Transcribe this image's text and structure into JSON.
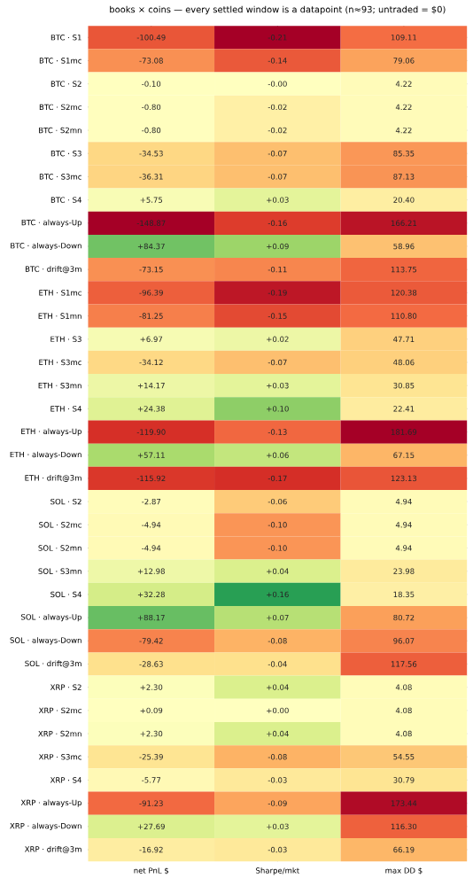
{
  "chart_data": {
    "type": "heatmap",
    "title": "books × coins — every settled window is a datapoint (n≈93; untraded = $0)",
    "categories": [
      "net PnL $",
      "Sharpe/mkt",
      "max DD $"
    ],
    "y_categories": [
      "BTC · S1",
      "BTC · S1mc",
      "BTC · S2",
      "BTC · S2mc",
      "BTC · S2mn",
      "BTC · S3",
      "BTC · S3mc",
      "BTC · S4",
      "BTC · always-Up",
      "BTC · always-Down",
      "BTC · drift@3m",
      "ETH · S1mc",
      "ETH · S1mn",
      "ETH · S3",
      "ETH · S3mc",
      "ETH · S3mn",
      "ETH · S4",
      "ETH · always-Up",
      "ETH · always-Down",
      "ETH · drift@3m",
      "SOL · S2",
      "SOL · S2mc",
      "SOL · S2mn",
      "SOL · S3mn",
      "SOL · S4",
      "SOL · always-Up",
      "SOL · always-Down",
      "SOL · drift@3m",
      "XRP · S2",
      "XRP · S2mc",
      "XRP · S2mn",
      "XRP · S3mc",
      "XRP · S4",
      "XRP · always-Up",
      "XRP · always-Down",
      "XRP · drift@3m"
    ],
    "cells": [
      [
        -100.49,
        -0.21,
        109.11
      ],
      [
        -73.08,
        -0.14,
        79.06
      ],
      [
        -0.1,
        0,
        4.22
      ],
      [
        -0.8,
        -0.02,
        4.22
      ],
      [
        -0.8,
        -0.02,
        4.22
      ],
      [
        -34.53,
        -0.07,
        85.35
      ],
      [
        -36.31,
        -0.07,
        87.13
      ],
      [
        5.75,
        0.03,
        20.4
      ],
      [
        -148.87,
        -0.16,
        166.21
      ],
      [
        84.37,
        0.09,
        58.96
      ],
      [
        -73.15,
        -0.11,
        113.75
      ],
      [
        -96.39,
        -0.19,
        120.38
      ],
      [
        -81.25,
        -0.15,
        110.8
      ],
      [
        6.97,
        0.02,
        47.71
      ],
      [
        -34.12,
        -0.07,
        48.06
      ],
      [
        14.17,
        0.03,
        30.85
      ],
      [
        24.38,
        0.1,
        22.41
      ],
      [
        -119.9,
        -0.13,
        181.69
      ],
      [
        57.11,
        0.06,
        67.15
      ],
      [
        -115.92,
        -0.17,
        123.13
      ],
      [
        -2.87,
        -0.06,
        4.94
      ],
      [
        -4.94,
        -0.1,
        4.94
      ],
      [
        -4.94,
        -0.1,
        4.94
      ],
      [
        12.98,
        0.04,
        23.98
      ],
      [
        32.28,
        0.16,
        18.35
      ],
      [
        88.17,
        0.07,
        80.72
      ],
      [
        -79.42,
        -0.08,
        96.07
      ],
      [
        -28.63,
        -0.04,
        117.56
      ],
      [
        2.3,
        0.04,
        4.08
      ],
      [
        0.09,
        0,
        4.08
      ],
      [
        2.3,
        0.04,
        4.08
      ],
      [
        -25.39,
        -0.08,
        54.55
      ],
      [
        -5.77,
        -0.03,
        30.79
      ],
      [
        -91.23,
        -0.09,
        173.44
      ],
      [
        27.69,
        0.03,
        116.3
      ],
      [
        -16.92,
        -0.03,
        66.19
      ]
    ],
    "cell_labels": [
      [
        "-100.49",
        "-0.21",
        "109.11"
      ],
      [
        "-73.08",
        "-0.14",
        "79.06"
      ],
      [
        "-0.10",
        "-0.00",
        "4.22"
      ],
      [
        "-0.80",
        "-0.02",
        "4.22"
      ],
      [
        "-0.80",
        "-0.02",
        "4.22"
      ],
      [
        "-34.53",
        "-0.07",
        "85.35"
      ],
      [
        "-36.31",
        "-0.07",
        "87.13"
      ],
      [
        "+5.75",
        "+0.03",
        "20.40"
      ],
      [
        "-148.87",
        "-0.16",
        "166.21"
      ],
      [
        "+84.37",
        "+0.09",
        "58.96"
      ],
      [
        "-73.15",
        "-0.11",
        "113.75"
      ],
      [
        "-96.39",
        "-0.19",
        "120.38"
      ],
      [
        "-81.25",
        "-0.15",
        "110.80"
      ],
      [
        "+6.97",
        "+0.02",
        "47.71"
      ],
      [
        "-34.12",
        "-0.07",
        "48.06"
      ],
      [
        "+14.17",
        "+0.03",
        "30.85"
      ],
      [
        "+24.38",
        "+0.10",
        "22.41"
      ],
      [
        "-119.90",
        "-0.13",
        "181.69"
      ],
      [
        "+57.11",
        "+0.06",
        "67.15"
      ],
      [
        "-115.92",
        "-0.17",
        "123.13"
      ],
      [
        "-2.87",
        "-0.06",
        "4.94"
      ],
      [
        "-4.94",
        "-0.10",
        "4.94"
      ],
      [
        "-4.94",
        "-0.10",
        "4.94"
      ],
      [
        "+12.98",
        "+0.04",
        "23.98"
      ],
      [
        "+32.28",
        "+0.16",
        "18.35"
      ],
      [
        "+88.17",
        "+0.07",
        "80.72"
      ],
      [
        "-79.42",
        "-0.08",
        "96.07"
      ],
      [
        "-28.63",
        "-0.04",
        "117.56"
      ],
      [
        "+2.30",
        "+0.04",
        "4.08"
      ],
      [
        "+0.09",
        "+0.00",
        "4.08"
      ],
      [
        "+2.30",
        "+0.04",
        "4.08"
      ],
      [
        "-25.39",
        "-0.08",
        "54.55"
      ],
      [
        "-5.77",
        "-0.03",
        "30.79"
      ],
      [
        "-91.23",
        "-0.09",
        "173.44"
      ],
      [
        "+27.69",
        "+0.03",
        "116.30"
      ],
      [
        "-16.92",
        "-0.03",
        "66.19"
      ]
    ]
  }
}
